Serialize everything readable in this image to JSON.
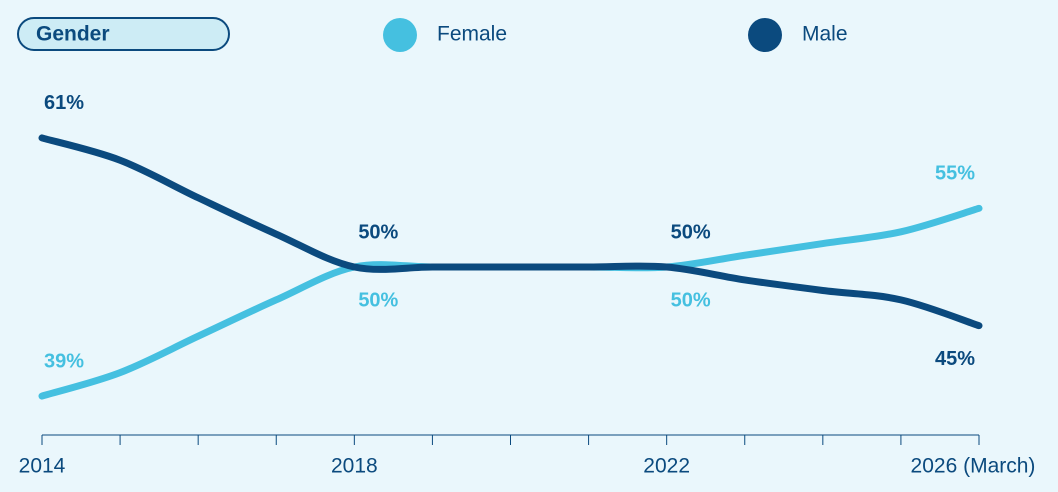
{
  "chart_data": {
    "type": "line",
    "legend_title": "Gender",
    "categories": [
      "2014",
      null,
      null,
      null,
      "2018",
      null,
      null,
      null,
      "2022",
      null,
      null,
      null,
      "2026 (March)"
    ],
    "series": [
      {
        "name": "Female",
        "color": "#45c0e0",
        "values": [
          39,
          41,
          44.1,
          47.2,
          50,
          50,
          50,
          50,
          50,
          51,
          52,
          53,
          55
        ],
        "value_labels": [
          "39%",
          null,
          null,
          null,
          "50%",
          null,
          null,
          null,
          "50%",
          null,
          null,
          null,
          "55%"
        ]
      },
      {
        "name": "Male",
        "color": "#0b4a7e",
        "values": [
          61,
          59.1,
          55.9,
          52.8,
          50,
          50,
          50,
          50,
          50,
          48.9,
          48,
          47.2,
          45
        ],
        "value_labels": [
          "61%",
          null,
          null,
          null,
          "50%",
          null,
          null,
          null,
          "50%",
          null,
          null,
          null,
          "45%"
        ]
      }
    ],
    "ylim": [
      35,
      65
    ]
  }
}
